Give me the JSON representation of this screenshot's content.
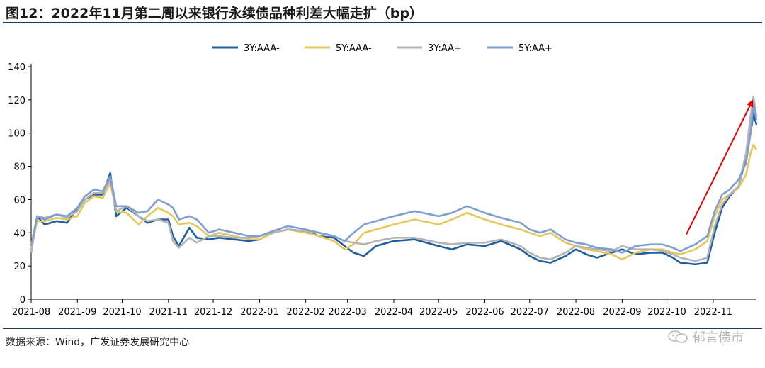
{
  "title": "图12：2022年11月第二周以来银行永续债品种利差大幅走扩（bp）",
  "source": "数据来源：Wind，广发证券发展研究中心",
  "watermark": "郁言债市",
  "chart_data": {
    "type": "line",
    "title": "图12：2022年11月第二周以来银行永续债品种利差大幅走扩（bp）",
    "xlabel": "",
    "ylabel": "",
    "ylim": [
      0,
      140
    ],
    "yticks": [
      0,
      20,
      40,
      60,
      80,
      100,
      120,
      140
    ],
    "x_tick_labels": [
      "2021-08",
      "2021-09",
      "2021-10",
      "2021-11",
      "2021-12",
      "2022-01",
      "2022-02",
      "2022-03",
      "2022-04",
      "2022-05",
      "2022-06",
      "2022-07",
      "2022-08",
      "2022-09",
      "2022-10",
      "2022-11"
    ],
    "x_range": [
      "2021-08-01",
      "2022-11-30"
    ],
    "grid": false,
    "legend_position": "top-center",
    "annotation": "red-arrow",
    "series": [
      {
        "name": "3Y:AAA-",
        "color": "#1f5f9e",
        "points": [
          [
            "2021-08-01",
            28
          ],
          [
            "2021-08-05",
            50
          ],
          [
            "2021-08-10",
            45
          ],
          [
            "2021-08-18",
            47
          ],
          [
            "2021-08-25",
            46
          ],
          [
            "2021-09-01",
            55
          ],
          [
            "2021-09-06",
            60
          ],
          [
            "2021-09-12",
            63
          ],
          [
            "2021-09-18",
            63
          ],
          [
            "2021-09-23",
            76
          ],
          [
            "2021-09-27",
            50
          ],
          [
            "2021-10-04",
            55
          ],
          [
            "2021-10-12",
            50
          ],
          [
            "2021-10-18",
            46
          ],
          [
            "2021-10-25",
            48
          ],
          [
            "2021-11-01",
            48
          ],
          [
            "2021-11-04",
            38
          ],
          [
            "2021-11-08",
            32
          ],
          [
            "2021-11-15",
            43
          ],
          [
            "2021-11-20",
            37
          ],
          [
            "2021-11-28",
            36
          ],
          [
            "2021-12-05",
            37
          ],
          [
            "2021-12-15",
            36
          ],
          [
            "2021-12-25",
            35
          ],
          [
            "2022-01-01",
            36
          ],
          [
            "2022-01-10",
            40
          ],
          [
            "2022-01-20",
            42
          ],
          [
            "2022-02-01",
            41
          ],
          [
            "2022-02-10",
            38
          ],
          [
            "2022-02-20",
            37
          ],
          [
            "2022-02-27",
            32
          ],
          [
            "2022-03-05",
            28
          ],
          [
            "2022-03-12",
            26
          ],
          [
            "2022-03-20",
            32
          ],
          [
            "2022-04-01",
            35
          ],
          [
            "2022-04-15",
            36
          ],
          [
            "2022-05-01",
            32
          ],
          [
            "2022-05-10",
            30
          ],
          [
            "2022-05-20",
            33
          ],
          [
            "2022-06-01",
            32
          ],
          [
            "2022-06-12",
            35
          ],
          [
            "2022-06-25",
            30
          ],
          [
            "2022-07-01",
            26
          ],
          [
            "2022-07-08",
            23
          ],
          [
            "2022-07-15",
            22
          ],
          [
            "2022-07-25",
            26
          ],
          [
            "2022-08-01",
            30
          ],
          [
            "2022-08-08",
            27
          ],
          [
            "2022-08-15",
            25
          ],
          [
            "2022-08-25",
            28
          ],
          [
            "2022-09-01",
            30
          ],
          [
            "2022-09-10",
            27
          ],
          [
            "2022-09-20",
            28
          ],
          [
            "2022-09-28",
            28
          ],
          [
            "2022-10-05",
            25
          ],
          [
            "2022-10-10",
            22
          ],
          [
            "2022-10-20",
            21
          ],
          [
            "2022-10-28",
            22
          ],
          [
            "2022-11-02",
            40
          ],
          [
            "2022-11-07",
            55
          ],
          [
            "2022-11-12",
            62
          ],
          [
            "2022-11-18",
            68
          ],
          [
            "2022-11-23",
            85
          ],
          [
            "2022-11-26",
            100
          ],
          [
            "2022-11-28",
            112
          ],
          [
            "2022-11-30",
            105
          ]
        ]
      },
      {
        "name": "5Y:AAA-",
        "color": "#e6c85a",
        "points": [
          [
            "2021-08-01",
            30
          ],
          [
            "2021-08-05",
            47
          ],
          [
            "2021-08-10",
            47
          ],
          [
            "2021-08-18",
            49
          ],
          [
            "2021-08-25",
            48
          ],
          [
            "2021-09-01",
            50
          ],
          [
            "2021-09-06",
            58
          ],
          [
            "2021-09-12",
            62
          ],
          [
            "2021-09-18",
            61
          ],
          [
            "2021-09-23",
            70
          ],
          [
            "2021-09-27",
            53
          ],
          [
            "2021-10-04",
            52
          ],
          [
            "2021-10-12",
            45
          ],
          [
            "2021-10-18",
            50
          ],
          [
            "2021-10-25",
            55
          ],
          [
            "2021-11-01",
            52
          ],
          [
            "2021-11-04",
            50
          ],
          [
            "2021-11-08",
            45
          ],
          [
            "2021-11-15",
            46
          ],
          [
            "2021-11-20",
            44
          ],
          [
            "2021-11-28",
            38
          ],
          [
            "2021-12-05",
            40
          ],
          [
            "2021-12-15",
            38
          ],
          [
            "2021-12-25",
            36
          ],
          [
            "2022-01-01",
            36
          ],
          [
            "2022-01-10",
            40
          ],
          [
            "2022-01-20",
            42
          ],
          [
            "2022-02-01",
            40
          ],
          [
            "2022-02-10",
            38
          ],
          [
            "2022-02-20",
            35
          ],
          [
            "2022-02-27",
            30
          ],
          [
            "2022-03-05",
            33
          ],
          [
            "2022-03-12",
            40
          ],
          [
            "2022-03-20",
            42
          ],
          [
            "2022-04-01",
            45
          ],
          [
            "2022-04-15",
            48
          ],
          [
            "2022-05-01",
            45
          ],
          [
            "2022-05-10",
            48
          ],
          [
            "2022-05-20",
            52
          ],
          [
            "2022-06-01",
            48
          ],
          [
            "2022-06-12",
            45
          ],
          [
            "2022-06-25",
            42
          ],
          [
            "2022-07-01",
            40
          ],
          [
            "2022-07-08",
            38
          ],
          [
            "2022-07-15",
            40
          ],
          [
            "2022-07-25",
            34
          ],
          [
            "2022-08-01",
            32
          ],
          [
            "2022-08-08",
            30
          ],
          [
            "2022-08-15",
            29
          ],
          [
            "2022-08-25",
            27
          ],
          [
            "2022-09-01",
            24
          ],
          [
            "2022-09-10",
            28
          ],
          [
            "2022-09-20",
            30
          ],
          [
            "2022-09-28",
            30
          ],
          [
            "2022-10-05",
            28
          ],
          [
            "2022-10-10",
            27
          ],
          [
            "2022-10-20",
            30
          ],
          [
            "2022-10-28",
            35
          ],
          [
            "2022-11-02",
            50
          ],
          [
            "2022-11-07",
            60
          ],
          [
            "2022-11-12",
            63
          ],
          [
            "2022-11-18",
            67
          ],
          [
            "2022-11-23",
            75
          ],
          [
            "2022-11-26",
            88
          ],
          [
            "2022-11-28",
            93
          ],
          [
            "2022-11-30",
            90
          ]
        ]
      },
      {
        "name": "3Y:AA+",
        "color": "#b4b4b4",
        "points": [
          [
            "2021-08-01",
            28
          ],
          [
            "2021-08-05",
            50
          ],
          [
            "2021-08-10",
            49
          ],
          [
            "2021-08-18",
            51
          ],
          [
            "2021-08-25",
            49
          ],
          [
            "2021-09-01",
            53
          ],
          [
            "2021-09-06",
            60
          ],
          [
            "2021-09-12",
            64
          ],
          [
            "2021-09-18",
            64
          ],
          [
            "2021-09-23",
            72
          ],
          [
            "2021-09-27",
            53
          ],
          [
            "2021-10-04",
            56
          ],
          [
            "2021-10-12",
            50
          ],
          [
            "2021-10-18",
            47
          ],
          [
            "2021-10-25",
            48
          ],
          [
            "2021-11-01",
            46
          ],
          [
            "2021-11-04",
            35
          ],
          [
            "2021-11-08",
            31
          ],
          [
            "2021-11-15",
            37
          ],
          [
            "2021-11-20",
            34
          ],
          [
            "2021-11-28",
            38
          ],
          [
            "2021-12-05",
            38
          ],
          [
            "2021-12-15",
            37
          ],
          [
            "2021-12-25",
            37
          ],
          [
            "2022-01-01",
            38
          ],
          [
            "2022-01-10",
            40
          ],
          [
            "2022-01-20",
            42
          ],
          [
            "2022-02-01",
            41
          ],
          [
            "2022-02-10",
            40
          ],
          [
            "2022-02-20",
            38
          ],
          [
            "2022-02-27",
            35
          ],
          [
            "2022-03-05",
            34
          ],
          [
            "2022-03-12",
            33
          ],
          [
            "2022-03-20",
            35
          ],
          [
            "2022-04-01",
            37
          ],
          [
            "2022-04-15",
            37
          ],
          [
            "2022-05-01",
            34
          ],
          [
            "2022-05-10",
            33
          ],
          [
            "2022-05-20",
            34
          ],
          [
            "2022-06-01",
            34
          ],
          [
            "2022-06-12",
            36
          ],
          [
            "2022-06-25",
            32
          ],
          [
            "2022-07-01",
            28
          ],
          [
            "2022-07-08",
            25
          ],
          [
            "2022-07-15",
            24
          ],
          [
            "2022-07-25",
            28
          ],
          [
            "2022-08-01",
            32
          ],
          [
            "2022-08-08",
            31
          ],
          [
            "2022-08-15",
            30
          ],
          [
            "2022-08-25",
            29
          ],
          [
            "2022-09-01",
            32
          ],
          [
            "2022-09-10",
            30
          ],
          [
            "2022-09-20",
            30
          ],
          [
            "2022-09-28",
            29
          ],
          [
            "2022-10-05",
            27
          ],
          [
            "2022-10-10",
            25
          ],
          [
            "2022-10-20",
            23
          ],
          [
            "2022-10-28",
            25
          ],
          [
            "2022-11-02",
            44
          ],
          [
            "2022-11-07",
            57
          ],
          [
            "2022-11-12",
            63
          ],
          [
            "2022-11-18",
            68
          ],
          [
            "2022-11-23",
            88
          ],
          [
            "2022-11-26",
            110
          ],
          [
            "2022-11-28",
            122
          ],
          [
            "2022-11-30",
            110
          ]
        ]
      },
      {
        "name": "5Y:AA+",
        "color": "#7f9ed2",
        "points": [
          [
            "2021-08-01",
            32
          ],
          [
            "2021-08-05",
            50
          ],
          [
            "2021-08-10",
            48
          ],
          [
            "2021-08-18",
            51
          ],
          [
            "2021-08-25",
            50
          ],
          [
            "2021-09-01",
            55
          ],
          [
            "2021-09-06",
            62
          ],
          [
            "2021-09-12",
            66
          ],
          [
            "2021-09-18",
            65
          ],
          [
            "2021-09-23",
            74
          ],
          [
            "2021-09-27",
            56
          ],
          [
            "2021-10-04",
            56
          ],
          [
            "2021-10-12",
            52
          ],
          [
            "2021-10-18",
            53
          ],
          [
            "2021-10-25",
            60
          ],
          [
            "2021-11-01",
            57
          ],
          [
            "2021-11-04",
            55
          ],
          [
            "2021-11-08",
            48
          ],
          [
            "2021-11-15",
            50
          ],
          [
            "2021-11-20",
            48
          ],
          [
            "2021-11-28",
            40
          ],
          [
            "2021-12-05",
            42
          ],
          [
            "2021-12-15",
            40
          ],
          [
            "2021-12-25",
            38
          ],
          [
            "2022-01-01",
            38
          ],
          [
            "2022-01-10",
            41
          ],
          [
            "2022-01-20",
            44
          ],
          [
            "2022-02-01",
            42
          ],
          [
            "2022-02-10",
            40
          ],
          [
            "2022-02-20",
            38
          ],
          [
            "2022-02-27",
            35
          ],
          [
            "2022-03-05",
            40
          ],
          [
            "2022-03-12",
            45
          ],
          [
            "2022-03-20",
            47
          ],
          [
            "2022-04-01",
            50
          ],
          [
            "2022-04-15",
            53
          ],
          [
            "2022-05-01",
            50
          ],
          [
            "2022-05-10",
            52
          ],
          [
            "2022-05-20",
            56
          ],
          [
            "2022-06-01",
            52
          ],
          [
            "2022-06-12",
            49
          ],
          [
            "2022-06-25",
            46
          ],
          [
            "2022-07-01",
            42
          ],
          [
            "2022-07-08",
            40
          ],
          [
            "2022-07-15",
            42
          ],
          [
            "2022-07-25",
            36
          ],
          [
            "2022-08-01",
            34
          ],
          [
            "2022-08-08",
            33
          ],
          [
            "2022-08-15",
            31
          ],
          [
            "2022-08-25",
            30
          ],
          [
            "2022-09-01",
            28
          ],
          [
            "2022-09-10",
            32
          ],
          [
            "2022-09-20",
            33
          ],
          [
            "2022-09-28",
            33
          ],
          [
            "2022-10-05",
            31
          ],
          [
            "2022-10-10",
            29
          ],
          [
            "2022-10-20",
            33
          ],
          [
            "2022-10-28",
            38
          ],
          [
            "2022-11-02",
            53
          ],
          [
            "2022-11-07",
            63
          ],
          [
            "2022-11-12",
            66
          ],
          [
            "2022-11-18",
            72
          ],
          [
            "2022-11-23",
            82
          ],
          [
            "2022-11-26",
            100
          ],
          [
            "2022-11-28",
            118
          ],
          [
            "2022-11-30",
            108
          ]
        ]
      }
    ]
  }
}
